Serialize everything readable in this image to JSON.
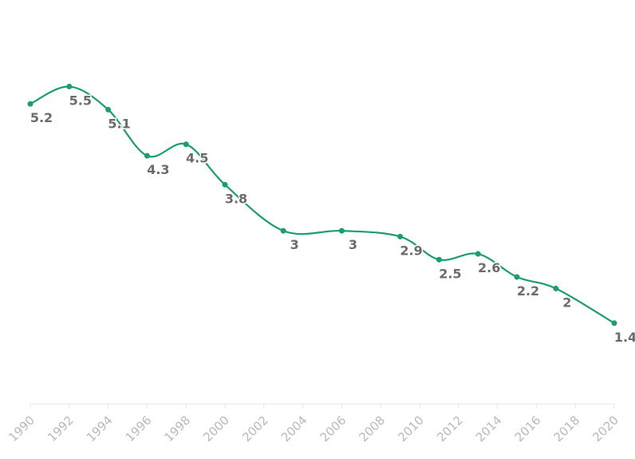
{
  "chart_data": {
    "type": "line",
    "title": "",
    "xlabel": "",
    "ylabel": "",
    "x_ticks": [
      "1990",
      "1992",
      "1994",
      "1996",
      "1998",
      "2000",
      "2002",
      "2004",
      "2006",
      "2008",
      "2010",
      "2012",
      "2014",
      "2016",
      "2018",
      "2020"
    ],
    "xlim": [
      1990,
      2020
    ],
    "ylim": [
      0,
      7
    ],
    "grid": false,
    "series": [
      {
        "color": "#1a9e6e",
        "x": [
          1990,
          1992,
          1994,
          1996,
          1998,
          2000,
          2003,
          2006,
          2009,
          2011,
          2013,
          2015,
          2017,
          2020
        ],
        "y": [
          5.2,
          5.5,
          5.1,
          4.3,
          4.5,
          3.8,
          3,
          3,
          2.9,
          2.5,
          2.6,
          2.2,
          2,
          1.4
        ],
        "labels": [
          "5.2",
          "5.5",
          "5.1",
          "4.3",
          "4.5",
          "3.8",
          "3",
          "3",
          "2.9",
          "2.5",
          "2.6",
          "2.2",
          "2",
          "1.4"
        ]
      }
    ]
  }
}
